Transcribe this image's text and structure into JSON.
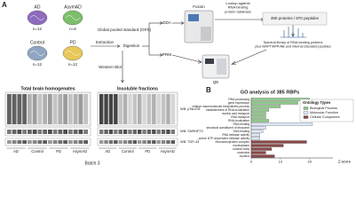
{
  "panel_a": {
    "label": "A",
    "groups": [
      {
        "name": "AD",
        "n": "n=12"
      },
      {
        "name": "AsymAD",
        "n": "n=8"
      },
      {
        "name": "Control",
        "n": "n=12"
      },
      {
        "name": "PD",
        "n": "n=12"
      }
    ],
    "extraction": "Extraction",
    "digestion": "Digestion",
    "gps": "Global pooled standard (GPS)",
    "dda": "DDA",
    "prm": "PRM",
    "western": "Western Blot",
    "fusion": "Fusion",
    "qe": "QE",
    "lookup": [
      "Lookup against",
      "RNA-binding",
      "protein database"
    ],
    "result": "390 proteins / 870 peptides",
    "library": [
      "Spectral library of RNA-binding proteins",
      "plus MAPT/APP/AB and internal standard peptides"
    ]
  },
  "blots": {
    "titles": [
      "Total brain homogenates",
      "Insoluble fractions"
    ],
    "lanes": [
      "AD",
      "Control",
      "PD",
      "AsymAD"
    ],
    "wb": [
      "WB: pTau231",
      "WB: SNRNP70",
      "WB: TDP-43"
    ],
    "batch": "Batch 3"
  },
  "panel_b": {
    "label": "B"
  },
  "chart_data": {
    "type": "bar",
    "orientation": "horizontal",
    "title": "GO analysis of 385 RBPs",
    "categories": [
      "RNA processing",
      "gene expression",
      "cellular macromolecule biosynthetic process",
      "establishment of RNA localization",
      "nucleic acid transport",
      "RNA transport",
      "RNA localization",
      "RNA binding",
      "structural constituent of ribosome",
      "DNA binding",
      "RNA helicase activity",
      "purine NTP-dependent helicase activity",
      "ribonucleoprotein complex",
      "nucleoplasm",
      "nuclear body",
      "nucleolus",
      "nucleus"
    ],
    "series": [
      {
        "name": "Biological Process",
        "color": "#8fc98a",
        "values": [
          20,
          16,
          10,
          6,
          5,
          5,
          6,
          null,
          null,
          null,
          null,
          null,
          null,
          null,
          null,
          null,
          null
        ]
      },
      {
        "name": "Molecular Function",
        "color": "#dce8f6",
        "values": [
          null,
          null,
          null,
          null,
          null,
          null,
          null,
          21,
          5,
          4,
          3,
          3,
          null,
          null,
          null,
          null,
          null
        ]
      },
      {
        "name": "Cellular Component",
        "color": "#8b4747",
        "values": [
          null,
          null,
          null,
          null,
          null,
          null,
          null,
          null,
          null,
          null,
          null,
          null,
          19,
          11,
          7,
          5,
          8
        ]
      }
    ],
    "xlim": [
      0,
      28
    ],
    "xticks": [
      0,
      10,
      20
    ],
    "xlabel": "Z-score",
    "legend_title": "Ontology Types",
    "legend": "upper right"
  }
}
